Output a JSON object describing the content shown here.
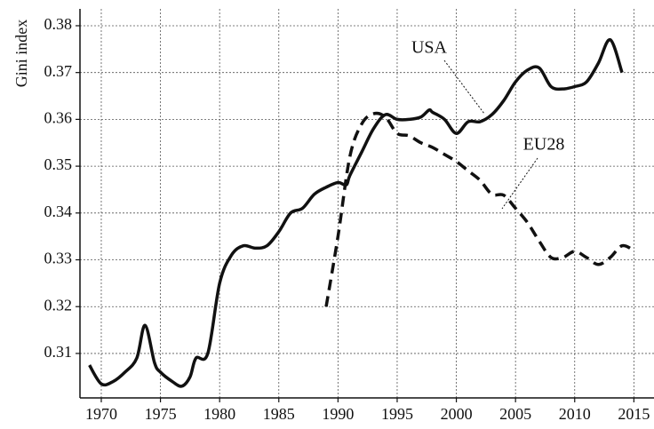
{
  "chart_data": {
    "type": "line",
    "y_label": "Gini index",
    "xlim": [
      1968.2,
      2016.7
    ],
    "xticks": [
      1970,
      1975,
      1980,
      1985,
      1990,
      1995,
      2000,
      2005,
      2010,
      2015
    ],
    "ylim": [
      0.3005,
      0.3836
    ],
    "yticks": [
      0.31,
      0.32,
      0.33,
      0.34,
      0.35,
      0.36,
      0.37,
      0.38
    ],
    "grid": true,
    "series": [
      {
        "name": "USA",
        "color": "#111111",
        "dash": "solid",
        "x": [
          1969,
          1970,
          1971,
          1972,
          1973,
          1973.7,
          1974.5,
          1975,
          1976,
          1976.8,
          1977.5,
          1978,
          1979,
          1980,
          1981,
          1982,
          1983,
          1984,
          1985,
          1986,
          1987,
          1988,
          1989,
          1990,
          1990.7,
          1991,
          1992,
          1993,
          1994,
          1995,
          1996,
          1997,
          1997.7,
          1998,
          1999,
          2000,
          2001,
          2002,
          2003,
          2004,
          2005,
          2006,
          2007,
          2008,
          2009,
          2010,
          2011,
          2012,
          2013,
          2014
        ],
        "values": [
          0.3075,
          0.3035,
          0.304,
          0.306,
          0.309,
          0.316,
          0.308,
          0.306,
          0.304,
          0.303,
          0.305,
          0.309,
          0.31,
          0.325,
          0.331,
          0.333,
          0.3325,
          0.333,
          0.336,
          0.34,
          0.341,
          0.344,
          0.3455,
          0.3465,
          0.346,
          0.348,
          0.353,
          0.358,
          0.361,
          0.36,
          0.36,
          0.3605,
          0.362,
          0.3615,
          0.36,
          0.357,
          0.3595,
          0.3595,
          0.361,
          0.364,
          0.368,
          0.3705,
          0.371,
          0.367,
          0.3665,
          0.367,
          0.368,
          0.372,
          0.377,
          0.37
        ]
      },
      {
        "name": "EU28",
        "color": "#111111",
        "dash": "dashed",
        "x": [
          1989,
          1990,
          1991,
          1992,
          1993,
          1994,
          1995,
          1996,
          1997,
          1998,
          1999,
          2000,
          2001,
          2002,
          2003,
          2004,
          2005,
          2006,
          2007,
          2008,
          2009,
          2010,
          2011,
          2012,
          2013,
          2014,
          2015
        ],
        "values": [
          0.32,
          0.335,
          0.352,
          0.359,
          0.3612,
          0.3605,
          0.357,
          0.3565,
          0.355,
          0.354,
          0.3525,
          0.351,
          0.349,
          0.347,
          0.344,
          0.3438,
          0.341,
          0.338,
          0.334,
          0.3305,
          0.3305,
          0.3318,
          0.3305,
          0.329,
          0.3305,
          0.333,
          0.332
        ]
      }
    ]
  }
}
